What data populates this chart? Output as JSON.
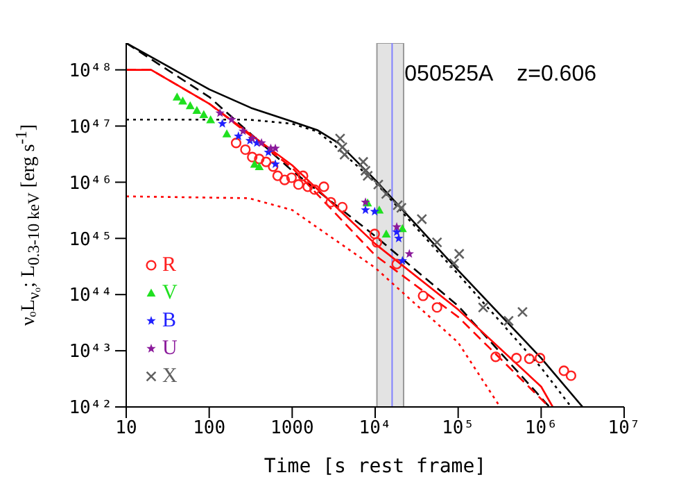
{
  "chart_data": {
    "type": "scatter",
    "xlabel": "Time [s rest frame]",
    "ylabel": "νₒL$_{νₒ}$; L$_{0.3-10 keV}$ [erg s$^{-1}$]",
    "annotations": [
      "050525A    z=0.606"
    ],
    "xlim": [
      10,
      10000000
    ],
    "ylim": [
      1e+42,
      3e+48
    ],
    "xticks": [
      10,
      100,
      1000,
      {
        "value": 10000,
        "label": "10⁴"
      },
      {
        "value": 100000,
        "label": "10⁵"
      },
      {
        "value": 1000000,
        "label": "10⁶"
      },
      {
        "value": 10000000,
        "label": "10⁷"
      }
    ],
    "yticks": [
      {
        "value": 1e+42,
        "label": "10⁴²"
      },
      {
        "value": 1e+43,
        "label": "10⁴³"
      },
      {
        "value": 1e+44,
        "label": "10⁴⁴"
      },
      {
        "value": 1e+45,
        "label": "10⁴⁵"
      },
      {
        "value": 1e+46,
        "label": "10⁴⁶"
      },
      {
        "value": 1e+47,
        "label": "10⁴⁷"
      },
      {
        "value": 1e+48,
        "label": "10⁴⁸"
      }
    ],
    "log": "xy",
    "grid": false,
    "legend": "left",
    "bands": [
      {
        "axis": "x",
        "from": 10500,
        "to": 22000,
        "color": "#c8c8c8"
      }
    ],
    "ref_lines": [
      {
        "axis": "x",
        "value": 16000,
        "color": "#8080ff"
      }
    ],
    "series": [
      {
        "name": "R",
        "color": "#ff2020",
        "marker": "circle",
        "x": [
          211,
          273,
          330,
          401,
          485,
          589,
          668,
          811,
          982,
          1190,
          1350,
          1540,
          1860,
          2410,
          2920,
          4020,
          9860,
          10500,
          18200,
          37800,
          55600,
          283000,
          504000,
          721000,
          968000,
          1880000,
          2290000
        ],
        "values": [
          5e+46,
          3.8e+46,
          2.8e+46,
          2.6e+46,
          2.3e+46,
          1.9e+46,
          1.3e+46,
          1.1e+46,
          1.2e+46,
          9.1e+45,
          1.3e+46,
          8.3e+45,
          7.4e+45,
          8.3e+45,
          4.4e+45,
          3.6e+45,
          1.2e+45,
          8.5e+44,
          3.5e+44,
          9.5e+43,
          5.9e+43,
          7.8e+42,
          7.4e+42,
          7.2e+42,
          7.4e+42,
          4.4e+42,
          3.6e+42
        ]
      },
      {
        "name": "V",
        "color": "#20e020",
        "marker": "triangle",
        "x": [
          41,
          48,
          59,
          71,
          86,
          104,
          163,
          352,
          401,
          8100,
          11200,
          13600,
          21300
        ],
        "values": [
          3.3e+47,
          2.8e+47,
          2.3e+47,
          1.9e+47,
          1.6e+47,
          1.3e+47,
          7.3e+46,
          2.1e+46,
          1.9e+46,
          4.3e+45,
          3.2e+45,
          1.2e+45,
          1.5e+45
        ]
      },
      {
        "name": "B",
        "color": "#2020ff",
        "marker": "star",
        "x": [
          144,
          225,
          310,
          375,
          517,
          627,
          7640,
          9860,
          18200,
          19200,
          21300
        ],
        "values": [
          1.1e+47,
          6.6e+46,
          5.5e+46,
          5e+46,
          3.4e+46,
          2.1e+46,
          3.2e+45,
          3e+45,
          1.3e+45,
          1e+45,
          4e+44
        ]
      },
      {
        "name": "U",
        "color": "#8b1a9b",
        "marker": "star",
        "x": [
          135,
          186,
          256,
          330,
          427,
          552,
          627,
          7640,
          18200,
          25800
        ],
        "values": [
          1.7e+47,
          1.3e+47,
          8.1e+46,
          6e+46,
          5e+46,
          4e+46,
          4e+46,
          4.4e+45,
          1.6e+45,
          5.3e+44
        ]
      },
      {
        "name": "X",
        "color": "#606060",
        "marker": "cross",
        "x": [
          3780,
          4020,
          4280,
          7170,
          7640,
          8130,
          10900,
          13600,
          18700,
          20700,
          36500,
          55600,
          89300,
          103000,
          200000,
          405000,
          596000
        ],
        "values": [
          6e+46,
          4.2e+46,
          3.1e+46,
          2.3e+46,
          1.6e+46,
          1.3e+46,
          9.1e+45,
          6.2e+45,
          3.9e+45,
          3.5e+45,
          2.2e+45,
          8.5e+44,
          3.6e+44,
          5.3e+44,
          5.9e+43,
          3.4e+43,
          4.9e+43
        ]
      },
      {
        "type": "line",
        "color": "#000000",
        "line_style": "solid",
        "x": [
          10,
          32,
          100,
          320,
          1000,
          2000,
          3600,
          10000,
          100000,
          1000000,
          3160000
        ],
        "values": [
          3e+48,
          1.15e+48,
          4.5e+47,
          2.1e+47,
          1.2e+47,
          8.5e+46,
          5e+46,
          1.1e+46,
          2.7e+44,
          7.4e+42,
          1e+42
        ]
      },
      {
        "type": "line",
        "color": "#000000",
        "line_style": "dotted",
        "x": [
          10,
          300,
          1000,
          2000,
          3000,
          10000,
          100000,
          1000000,
          2300000
        ],
        "values": [
          1.3e+47,
          1.3e+47,
          1.1e+47,
          8e+46,
          5e+46,
          1e+46,
          2.3e+44,
          5e+42,
          1e+42
        ]
      },
      {
        "type": "line",
        "color": "#000000",
        "line_style": "dashed",
        "x": [
          10,
          100,
          1000,
          10000,
          100000,
          1260000
        ],
        "values": [
          3e+48,
          3.3e+47,
          1.6e+46,
          1.1e+45,
          6.3e+43,
          1e+42
        ]
      },
      {
        "type": "line",
        "color": "#ff0000",
        "line_style": "solid",
        "x": [
          10,
          20,
          100,
          1000,
          10000,
          100000,
          1000000,
          1380000
        ],
        "values": [
          1e+48,
          1e+48,
          2.5e+47,
          2e+46,
          8e+44,
          5.4e+43,
          2.3e+42,
          1e+42
        ]
      },
      {
        "type": "line",
        "color": "#ff0000",
        "line_style": "dashed",
        "x": [
          10,
          20,
          100,
          1000,
          10000,
          100000,
          1250000
        ],
        "values": [
          1e+48,
          1e+48,
          2.5e+47,
          1.8e+46,
          5e+44,
          4e+43,
          1e+42
        ]
      },
      {
        "type": "line",
        "color": "#ff0000",
        "line_style": "dotted",
        "x": [
          10,
          300,
          1000,
          10000,
          100000,
          320000
        ],
        "values": [
          5.6e+45,
          5.2e+45,
          3.2e+45,
          3e+44,
          1.4e+43,
          1e+42
        ]
      }
    ]
  }
}
